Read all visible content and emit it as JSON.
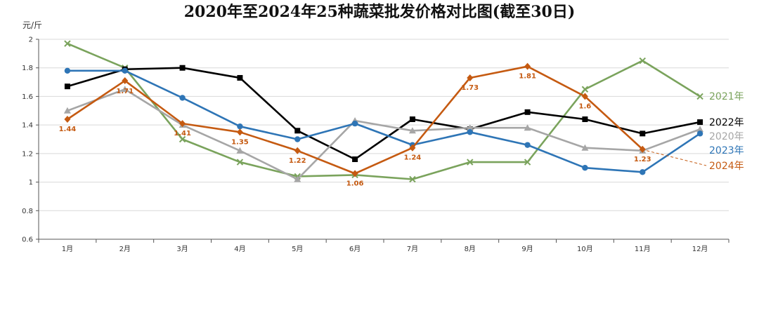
{
  "chart_data": {
    "type": "line",
    "title": "2020年至2024年25种蔬菜批发价格对比图(截至30日)",
    "ylabel": "元/斤",
    "xlabel": "",
    "ylim": [
      0.6,
      2.0
    ],
    "yticks": [
      "0.6",
      "0.8",
      "1",
      "1.2",
      "1.4",
      "1.6",
      "1.8",
      "2"
    ],
    "categories": [
      "1月",
      "2月",
      "3月",
      "4月",
      "5月",
      "6月",
      "7月",
      "8月",
      "9月",
      "10月",
      "11月",
      "12月"
    ],
    "grid": true,
    "legend": "right, inline at line ends",
    "series": [
      {
        "name": "2021年",
        "color": "#7aa35c",
        "marker": "x",
        "values": [
          1.97,
          1.8,
          1.3,
          1.14,
          1.04,
          1.05,
          1.02,
          1.14,
          1.14,
          1.65,
          1.85,
          1.6
        ]
      },
      {
        "name": "2022年",
        "color": "#000000",
        "marker": "square",
        "values": [
          1.67,
          1.79,
          1.8,
          1.73,
          1.36,
          1.16,
          1.44,
          1.37,
          1.49,
          1.44,
          1.34,
          1.42
        ]
      },
      {
        "name": "2020年",
        "color": "#a6a6a6",
        "marker": "triangle",
        "values": [
          1.5,
          1.65,
          1.4,
          1.22,
          1.02,
          1.43,
          1.36,
          1.38,
          1.38,
          1.24,
          1.22,
          1.37
        ]
      },
      {
        "name": "2023年",
        "color": "#2e75b6",
        "marker": "circle",
        "values": [
          1.78,
          1.78,
          1.59,
          1.39,
          1.3,
          1.41,
          1.26,
          1.35,
          1.26,
          1.1,
          1.07,
          1.34
        ]
      },
      {
        "name": "2024年",
        "color": "#c55a11",
        "marker": "diamond",
        "values": [
          1.44,
          1.71,
          1.41,
          1.35,
          1.22,
          1.06,
          1.24,
          1.73,
          1.81,
          1.6,
          1.23,
          null
        ],
        "data_labels": [
          "1.44",
          "1.71",
          "1.41",
          "1.35",
          "1.22",
          "1.06",
          "1.24",
          "1.73",
          "1.81",
          "1.6",
          "1.23",
          null
        ]
      }
    ]
  }
}
